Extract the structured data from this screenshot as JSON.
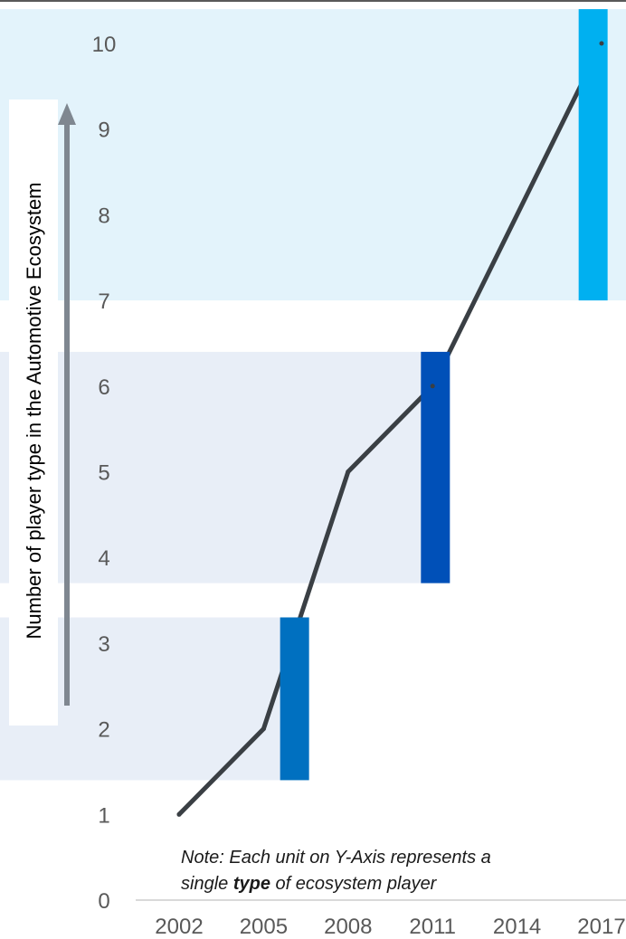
{
  "chart_data": {
    "type": "line",
    "x": [
      2002,
      2005,
      2008,
      2011,
      2014,
      2017
    ],
    "x_tick_labels": [
      "2002",
      "2005",
      "2008",
      "2011",
      "2014",
      "2017"
    ],
    "y_tick_labels": [
      "0",
      "1",
      "2",
      "3",
      "4",
      "5",
      "6",
      "7",
      "8",
      "9",
      "10"
    ],
    "series": [
      {
        "points": [
          {
            "x": 2002,
            "y": 1
          },
          {
            "x": 2005,
            "y": 2
          },
          {
            "x": 2008,
            "y": 5
          },
          {
            "x": 2011,
            "y": 6
          },
          {
            "x": 2017,
            "y": 10
          }
        ]
      }
    ],
    "ylabel": "Number of player type in the Automotive Ecosystem",
    "xlabel": "",
    "title": "",
    "ylim": [
      0,
      10
    ],
    "grid": false,
    "legend": "none",
    "annotation": {
      "line1": "Note: Each unit on Y-Axis represents a",
      "line2_before": "single ",
      "line2_bold": "type",
      "line2_after": " of ecosystem player"
    },
    "bands": [
      {
        "y_from": 1.4,
        "y_to": 3.3,
        "x_end": 2006.5,
        "color": "#e8eef7"
      },
      {
        "y_from": 3.7,
        "y_to": 6.4,
        "x_end": 2011.6,
        "color": "#e8eef7"
      },
      {
        "y_from": 7.0,
        "y_to": 10.4,
        "x_end": 2018,
        "color": "#e3f3fb"
      }
    ],
    "bars": [
      {
        "x": 2006.1,
        "y_from": 1.4,
        "y_to": 3.3,
        "color": "#0070c0"
      },
      {
        "x": 2011.1,
        "y_from": 3.7,
        "y_to": 6.4,
        "color": "#0050b8"
      },
      {
        "x": 2016.7,
        "y_from": 7.0,
        "y_to": 10.4,
        "color": "#00b0f0"
      }
    ],
    "colors": {
      "line": "#3a3f44",
      "tick_text": "#595959",
      "axis_arrow": "#7f8790",
      "top_rule": "#595959",
      "baseline": "#d9d9d9"
    }
  }
}
